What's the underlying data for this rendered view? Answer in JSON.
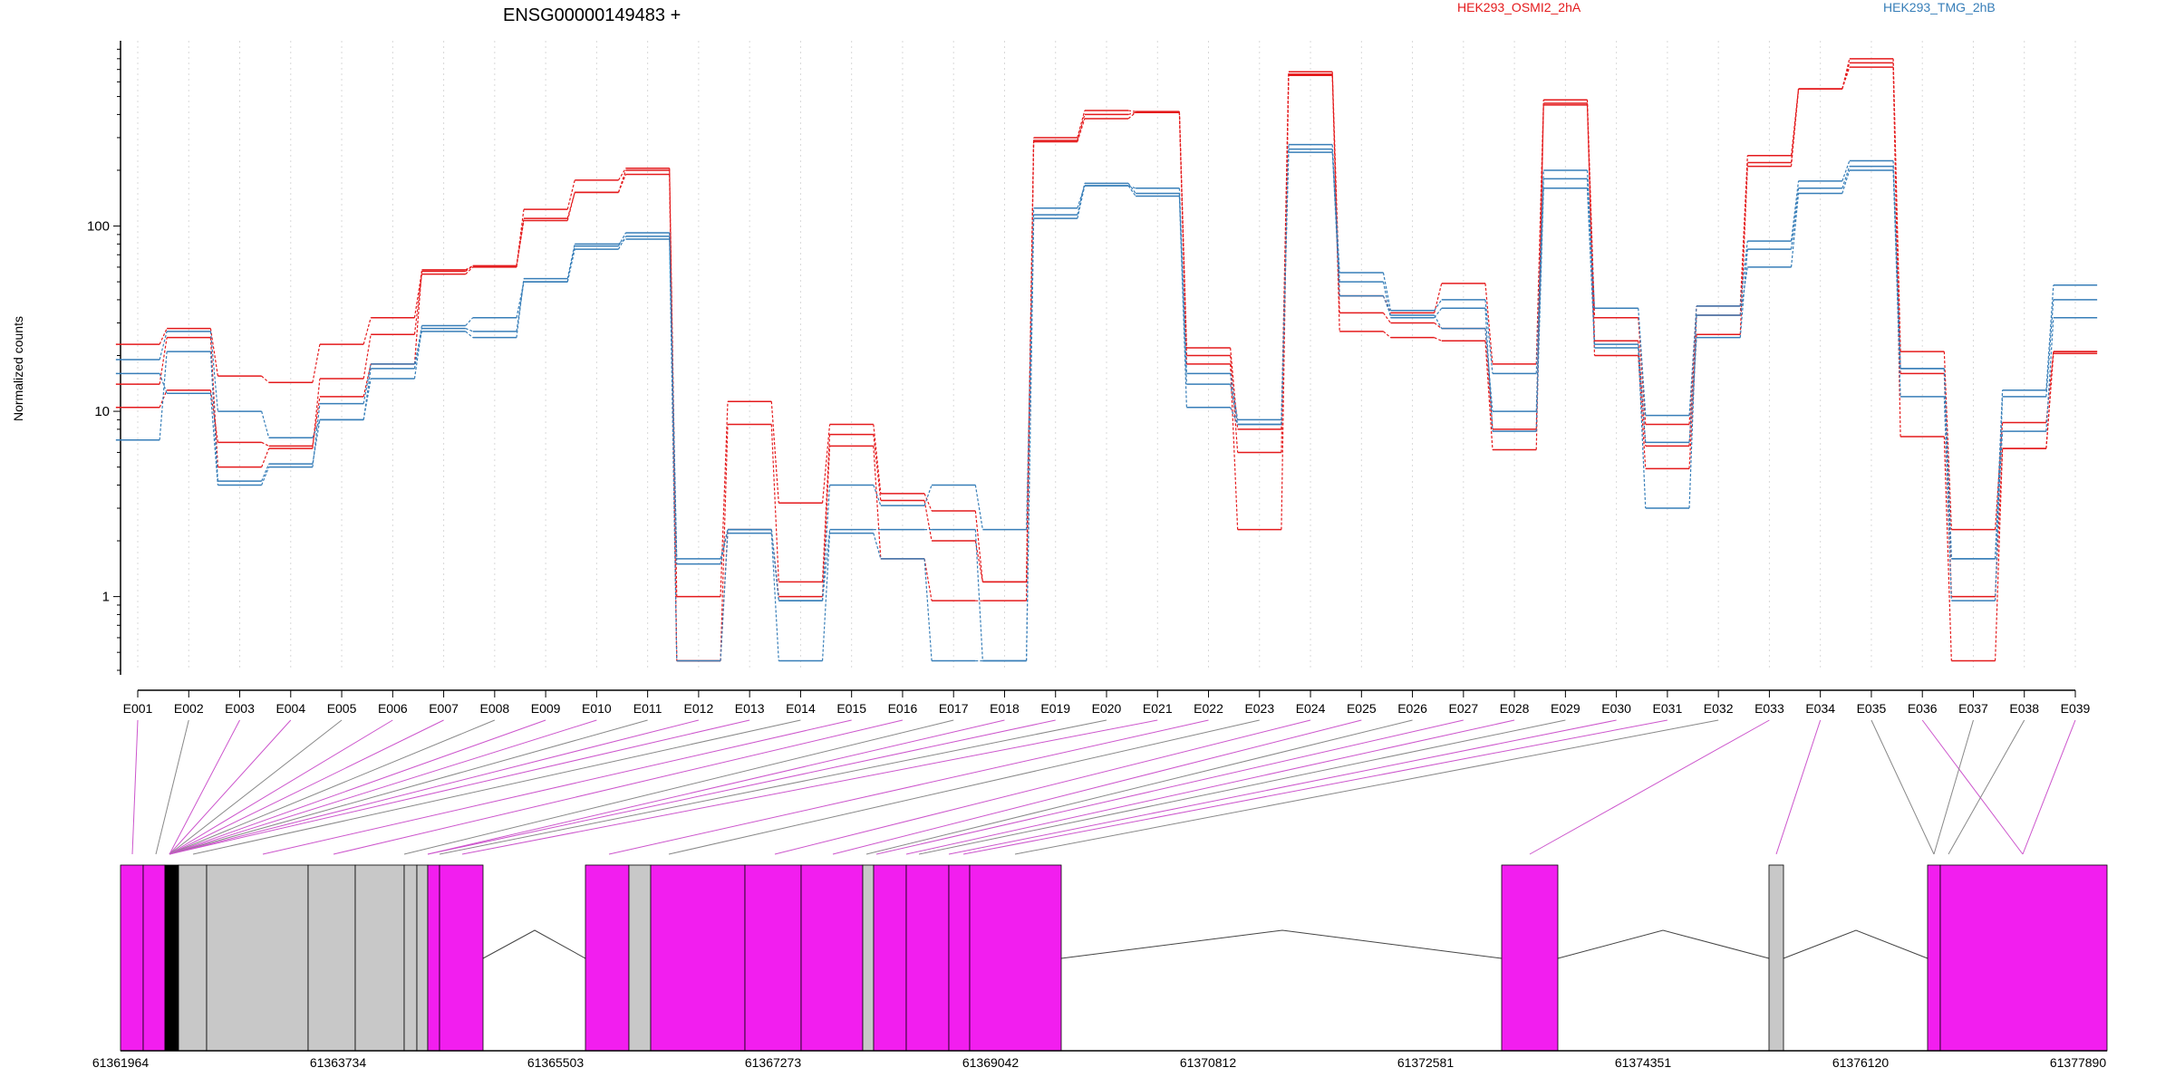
{
  "chart_data": {
    "type": "line",
    "title": "ENSG00000149483 +",
    "ylabel": "Normalized counts",
    "xlabel": "",
    "yscale": "log",
    "ylim": [
      0.4,
      1000
    ],
    "yticks": [
      1,
      10,
      100
    ],
    "ytick_labels": [
      "1",
      "10",
      "100"
    ],
    "grid": "vertical dotted",
    "legend_position": "top",
    "categories": [
      "E001",
      "E002",
      "E003",
      "E004",
      "E005",
      "E006",
      "E007",
      "E008",
      "E009",
      "E010",
      "E011",
      "E012",
      "E013",
      "E014",
      "E015",
      "E016",
      "E017",
      "E018",
      "E019",
      "E020",
      "E021",
      "E022",
      "E023",
      "E024",
      "E025",
      "E026",
      "E027",
      "E028",
      "E029",
      "E030",
      "E031",
      "E032",
      "E033",
      "E034",
      "E035",
      "E036",
      "E037",
      "E038",
      "E039"
    ],
    "groups": [
      {
        "name": "HEK293_OSMI2_2hA",
        "color": "#e41a1c"
      },
      {
        "name": "HEK293_TMG_2hB",
        "color": "#377eb8"
      }
    ],
    "series": [
      {
        "group": 0,
        "values": [
          23,
          28,
          15.5,
          14.3,
          23,
          32,
          57,
          61,
          123,
          177,
          205,
          1.0,
          11.3,
          3.2,
          8.5,
          3.6,
          2.9,
          1.2,
          300,
          420,
          415,
          22,
          8.0,
          680,
          42,
          34,
          49,
          18,
          480,
          32,
          8.5,
          37,
          240,
          550,
          800,
          21,
          2.3,
          8.7,
          21
        ]
      },
      {
        "group": 0,
        "values": [
          14,
          25,
          5.0,
          6.3,
          15,
          26,
          55,
          60,
          110,
          152,
          190,
          0.45,
          8.5,
          1.2,
          7.5,
          3.3,
          2.0,
          1.2,
          290,
          400,
          410,
          20,
          6.0,
          650,
          34,
          30,
          28,
          8.0,
          460,
          24,
          6.5,
          33,
          220,
          550,
          760,
          16,
          1.0,
          6.3,
          20.5
        ]
      },
      {
        "group": 0,
        "values": [
          10.5,
          13,
          6.8,
          6.5,
          12,
          18,
          58,
          61,
          107,
          152,
          200,
          0.45,
          2.3,
          1.0,
          6.5,
          1.6,
          0.95,
          0.95,
          285,
          380,
          410,
          18,
          2.3,
          660,
          27,
          25,
          24,
          6.2,
          450,
          20,
          4.9,
          26,
          210,
          550,
          720,
          7.3,
          0.45,
          6.3,
          21
        ]
      },
      {
        "group": 1,
        "values": [
          19,
          27,
          10,
          7.2,
          9,
          17,
          29,
          32,
          50,
          78,
          92,
          1.6,
          2.3,
          0.95,
          4.0,
          3.1,
          4.0,
          2.3,
          125,
          165,
          160,
          16,
          9.0,
          275,
          56,
          35,
          40,
          16,
          200,
          36,
          9.5,
          37,
          83,
          175,
          225,
          17,
          1.6,
          13,
          48
        ]
      },
      {
        "group": 1,
        "values": [
          7,
          21,
          4.2,
          5.2,
          9,
          15,
          28,
          27,
          50,
          75,
          88,
          1.5,
          2.3,
          0.95,
          2.3,
          2.3,
          2.3,
          0.45,
          115,
          170,
          150,
          14,
          8.5,
          260,
          42,
          33,
          28,
          10,
          180,
          23,
          6.8,
          25,
          75,
          160,
          210,
          12,
          0.95,
          12,
          40
        ]
      },
      {
        "group": 1,
        "values": [
          16,
          12.5,
          4.0,
          5.0,
          11,
          18,
          27,
          25,
          52,
          80,
          85,
          0.45,
          2.2,
          0.45,
          2.2,
          1.6,
          0.45,
          0.45,
          110,
          165,
          145,
          10.5,
          8.5,
          250,
          50,
          32,
          36,
          7.8,
          160,
          22,
          3.0,
          33,
          60,
          150,
          200,
          17,
          1.6,
          7.8,
          32
        ]
      }
    ],
    "genomic_axis": {
      "tick_labels": [
        "61361964",
        "61363734",
        "61365503",
        "61367273",
        "61369042",
        "61370812",
        "61372581",
        "61374351",
        "61376120",
        "61377890"
      ]
    }
  }
}
